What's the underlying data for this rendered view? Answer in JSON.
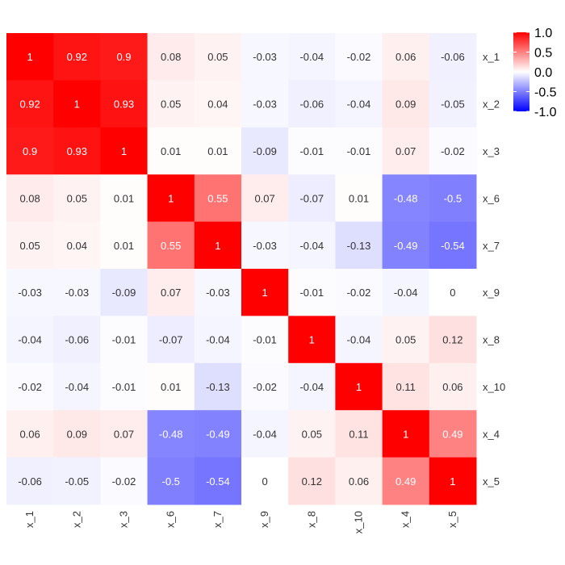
{
  "chart_data": {
    "type": "heatmap",
    "title": "",
    "xlabel": "",
    "ylabel": "",
    "x_labels": [
      "x_1",
      "x_2",
      "x_3",
      "x_6",
      "x_7",
      "x_9",
      "x_8",
      "x_10",
      "x_4",
      "x_5"
    ],
    "y_labels": [
      "x_1",
      "x_2",
      "x_3",
      "x_6",
      "x_7",
      "x_9",
      "x_8",
      "x_10",
      "x_4",
      "x_5"
    ],
    "values": [
      [
        1,
        0.92,
        0.9,
        0.08,
        0.05,
        -0.03,
        -0.04,
        -0.02,
        0.06,
        -0.06
      ],
      [
        0.92,
        1,
        0.93,
        0.05,
        0.04,
        -0.03,
        -0.06,
        -0.04,
        0.09,
        -0.05
      ],
      [
        0.9,
        0.93,
        1,
        0.01,
        0.01,
        -0.09,
        -0.01,
        -0.01,
        0.07,
        -0.02
      ],
      [
        0.08,
        0.05,
        0.01,
        1,
        0.55,
        0.07,
        -0.07,
        0.01,
        -0.48,
        -0.5
      ],
      [
        0.05,
        0.04,
        0.01,
        0.55,
        1,
        -0.03,
        -0.04,
        -0.13,
        -0.49,
        -0.54
      ],
      [
        -0.03,
        -0.03,
        -0.09,
        0.07,
        -0.03,
        1,
        -0.01,
        -0.02,
        -0.04,
        0
      ],
      [
        -0.04,
        -0.06,
        -0.01,
        -0.07,
        -0.04,
        -0.01,
        1,
        -0.04,
        0.05,
        0.12
      ],
      [
        -0.02,
        -0.04,
        -0.01,
        0.01,
        -0.13,
        -0.02,
        -0.04,
        1,
        0.11,
        0.06
      ],
      [
        0.06,
        0.09,
        0.07,
        -0.48,
        -0.49,
        -0.04,
        0.05,
        0.11,
        1,
        0.49
      ],
      [
        -0.06,
        -0.05,
        -0.02,
        -0.5,
        -0.54,
        0,
        0.12,
        0.06,
        0.49,
        1
      ]
    ],
    "color_scale": {
      "min": -1.0,
      "mid": 0.0,
      "max": 1.0,
      "low_color": "#0000ff",
      "mid_color": "#ffffff",
      "high_color": "#ff0000",
      "tick_labels": [
        "1.0",
        "0.5",
        "0.0",
        "-0.5",
        "-1.0"
      ]
    },
    "legend_placement": "top-right",
    "grid": false
  }
}
